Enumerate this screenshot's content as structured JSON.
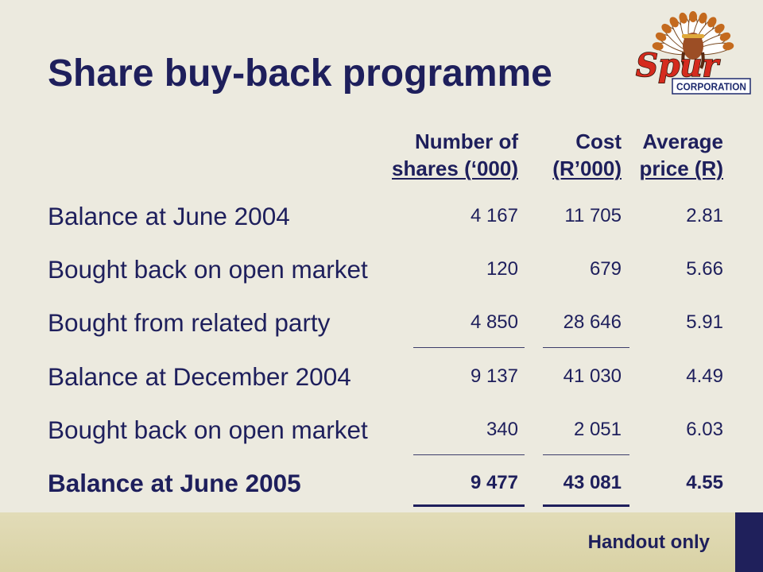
{
  "slide": {
    "title": "Share buy-back programme",
    "footer_note": "Handout only"
  },
  "logo": {
    "wordmark": "Spur",
    "subtitle": "CORPORATION"
  },
  "table": {
    "columns": [
      {
        "line1": "Number of",
        "line2": "shares (‘000)"
      },
      {
        "line1": "Cost",
        "line2": "(R’000)"
      },
      {
        "line1": "Average",
        "line2": "price (R)"
      }
    ],
    "rows": [
      {
        "label": "Balance at June 2004",
        "shares": "4 167",
        "cost": "11 705",
        "average_price": "2.81"
      },
      {
        "label": "Bought back on open market",
        "shares": "120",
        "cost": "679",
        "average_price": "5.66"
      },
      {
        "label": "Bought from related party",
        "shares": "4 850",
        "cost": "28 646",
        "average_price": "5.91"
      },
      {
        "label": "Balance at December 2004",
        "shares": "9 137",
        "cost": "41 030",
        "average_price": "4.49"
      },
      {
        "label": "Bought back on open market",
        "shares": "340",
        "cost": "2 051",
        "average_price": "6.03"
      },
      {
        "label": "Balance at June 2005",
        "shares": "9 477",
        "cost": "43 081",
        "average_price": "4.55"
      }
    ]
  },
  "colors": {
    "text": "#1E1F5C",
    "background": "#ECEADF",
    "footer_band": "#D9D2A5",
    "footer_block": "#1F205B",
    "rule": "#3C3D6A",
    "logo_red": "#D52B1E",
    "logo_navy": "#1E2A6E"
  }
}
